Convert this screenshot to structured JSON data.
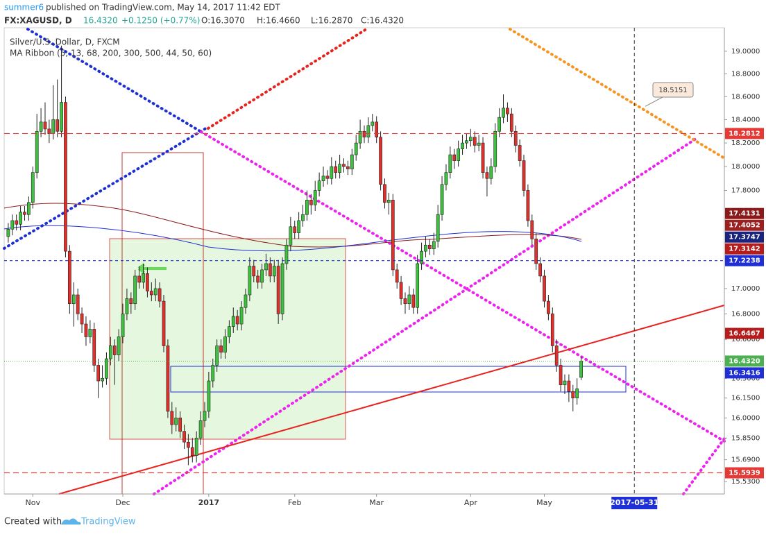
{
  "header": {
    "author": "summer6",
    "published": "published on TradingView.com, May 14, 2017 11:42 EDT",
    "symbol": "FX:XAGUSD, D",
    "last": "16.4320",
    "change": "+0.1250 (+0.77%)",
    "open": "O:16.3070",
    "high": "H:16.4660",
    "low": "L:16.2870",
    "close": "C:16.4320"
  },
  "footer": {
    "created": "Created with",
    "brand": "TradingView"
  },
  "chart_data": {
    "type": "candlestick",
    "title": "Silver/U.S. Dollar, D, FXCM",
    "subtitle": "MA Ribbon (5, 13, 68, 200, 300, 500, 44, 50, 60)",
    "log_scale": true,
    "up_color": "#3cc23c",
    "down_color": "#e0302b",
    "xlim": [
      -1,
      175
    ],
    "xticks": [
      {
        "value": 6,
        "label": "Nov"
      },
      {
        "value": 28,
        "label": "Dec"
      },
      {
        "value": 49,
        "label": "2017"
      },
      {
        "value": 70,
        "label": "Feb"
      },
      {
        "value": 90,
        "label": "Mar"
      },
      {
        "value": 113,
        "label": "Apr"
      },
      {
        "value": 131,
        "label": "May"
      }
    ],
    "x_marker": {
      "value": 153,
      "label": "2017-05-31"
    },
    "ylim": [
      15.44,
      19.21
    ],
    "yticks": [
      {
        "value": 19,
        "label": "19.0000"
      },
      {
        "value": 18.8,
        "label": "18.8000"
      },
      {
        "value": 18.6,
        "label": "18.6000"
      },
      {
        "value": 18.4,
        "label": "18.4000"
      },
      {
        "value": 18.2,
        "label": "18.2000"
      },
      {
        "value": 18,
        "label": "18.0000"
      },
      {
        "value": 17.8,
        "label": "17.8000"
      },
      {
        "value": 17,
        "label": "17.0000"
      },
      {
        "value": 16.8,
        "label": "16.8000"
      },
      {
        "value": 16.6,
        "label": "16.6000"
      },
      {
        "value": 16.3,
        "label": "16.3000"
      },
      {
        "value": 16.15,
        "label": "16.1500"
      },
      {
        "value": 16,
        "label": "16.0000"
      },
      {
        "value": 15.85,
        "label": "15.8500"
      },
      {
        "value": 15.69,
        "label": "15.6900"
      },
      {
        "value": 15.53,
        "label": "15.5300"
      }
    ],
    "price_labels": [
      {
        "value": 18.2812,
        "color": "#e53935",
        "line": "dashed"
      },
      {
        "value": 17.4131,
        "color": "#8b1a1a"
      },
      {
        "value": 17.4052,
        "color": "#9c2020"
      },
      {
        "value": 17.3747,
        "color": "#1a237e"
      },
      {
        "value": 17.3142,
        "color": "#b71c1c"
      },
      {
        "value": 17.2238,
        "color": "#1e2fd6",
        "line": "dashed"
      },
      {
        "value": 16.6467,
        "color": "#b71c1c"
      },
      {
        "value": 16.432,
        "label": "16.4320",
        "color": "#4caf50",
        "line": "dotted"
      },
      {
        "value": 16.3416,
        "color": "#1e2fd6"
      },
      {
        "value": 15.5939,
        "color": "#e53935",
        "line": "dashed"
      }
    ],
    "annotation": {
      "value": 18.5151,
      "label": "18.5151"
    },
    "candles": [
      [
        17.42,
        17.53,
        17.37,
        17.48
      ],
      [
        17.48,
        17.6,
        17.43,
        17.55
      ],
      [
        17.55,
        17.6,
        17.47,
        17.52
      ],
      [
        17.52,
        17.67,
        17.47,
        17.62
      ],
      [
        17.62,
        17.67,
        17.55,
        17.6
      ],
      [
        17.6,
        17.75,
        17.55,
        17.7
      ],
      [
        17.7,
        18.0,
        17.65,
        17.95
      ],
      [
        17.95,
        18.45,
        17.9,
        18.3
      ],
      [
        18.3,
        18.5,
        18.25,
        18.38
      ],
      [
        18.38,
        18.55,
        18.27,
        18.32
      ],
      [
        18.32,
        18.4,
        18.2,
        18.28
      ],
      [
        18.28,
        18.7,
        18.23,
        18.4
      ],
      [
        18.4,
        18.75,
        18.25,
        18.3
      ],
      [
        18.3,
        19.05,
        18.25,
        18.55
      ],
      [
        18.55,
        18.6,
        17.25,
        17.3
      ],
      [
        17.3,
        17.35,
        16.8,
        16.88
      ],
      [
        16.88,
        17.05,
        16.7,
        16.95
      ],
      [
        16.95,
        17.0,
        16.75,
        16.8
      ],
      [
        16.8,
        16.85,
        16.65,
        16.72
      ],
      [
        16.72,
        16.78,
        16.55,
        16.62
      ],
      [
        16.62,
        16.75,
        16.57,
        16.68
      ],
      [
        16.68,
        16.73,
        16.35,
        16.4
      ],
      [
        16.4,
        16.45,
        16.15,
        16.28
      ],
      [
        16.28,
        16.4,
        16.23,
        16.3
      ],
      [
        16.3,
        16.5,
        16.25,
        16.45
      ],
      [
        16.45,
        16.62,
        16.4,
        16.55
      ],
      [
        16.55,
        16.6,
        16.25,
        16.48
      ],
      [
        16.48,
        16.68,
        16.43,
        16.62
      ],
      [
        16.62,
        16.88,
        16.57,
        16.8
      ],
      [
        16.8,
        17.0,
        16.75,
        16.92
      ],
      [
        16.92,
        16.97,
        16.8,
        16.88
      ],
      [
        16.88,
        17.15,
        16.83,
        17.1
      ],
      [
        17.1,
        17.18,
        17.0,
        17.05
      ],
      [
        17.05,
        17.2,
        17.0,
        17.12
      ],
      [
        17.12,
        17.17,
        16.93,
        16.98
      ],
      [
        16.98,
        17.05,
        16.9,
        16.95
      ],
      [
        16.95,
        17.08,
        16.9,
        17.0
      ],
      [
        17.0,
        17.05,
        16.85,
        16.9
      ],
      [
        16.9,
        16.95,
        16.5,
        16.55
      ],
      [
        16.55,
        16.6,
        16.0,
        16.05
      ],
      [
        16.05,
        16.12,
        15.88,
        15.95
      ],
      [
        15.95,
        16.08,
        15.9,
        16.0
      ],
      [
        16.0,
        16.05,
        15.85,
        15.9
      ],
      [
        15.9,
        15.95,
        15.77,
        15.82
      ],
      [
        15.82,
        15.88,
        15.65,
        15.78
      ],
      [
        15.78,
        15.85,
        15.67,
        15.72
      ],
      [
        15.72,
        15.9,
        15.67,
        15.85
      ],
      [
        15.85,
        16.05,
        15.8,
        15.98
      ],
      [
        15.98,
        16.12,
        15.93,
        16.05
      ],
      [
        16.05,
        16.35,
        16.0,
        16.28
      ],
      [
        16.28,
        16.45,
        16.23,
        16.4
      ],
      [
        16.4,
        16.6,
        16.35,
        16.55
      ],
      [
        16.55,
        16.6,
        16.45,
        16.5
      ],
      [
        16.5,
        16.68,
        16.45,
        16.62
      ],
      [
        16.62,
        16.75,
        16.57,
        16.7
      ],
      [
        16.7,
        16.85,
        16.65,
        16.78
      ],
      [
        16.78,
        16.83,
        16.67,
        16.72
      ],
      [
        16.72,
        16.9,
        16.67,
        16.85
      ],
      [
        16.85,
        17.0,
        16.8,
        16.95
      ],
      [
        16.95,
        17.25,
        16.9,
        17.18
      ],
      [
        17.18,
        17.23,
        17.05,
        17.1
      ],
      [
        17.1,
        17.15,
        17.0,
        17.05
      ],
      [
        17.05,
        17.2,
        17.0,
        17.15
      ],
      [
        17.15,
        17.28,
        17.1,
        17.2
      ],
      [
        17.2,
        17.25,
        17.05,
        17.1
      ],
      [
        17.1,
        17.23,
        17.05,
        17.18
      ],
      [
        17.18,
        17.23,
        16.72,
        16.8
      ],
      [
        16.8,
        17.25,
        16.75,
        17.2
      ],
      [
        17.2,
        17.4,
        17.15,
        17.35
      ],
      [
        17.35,
        17.58,
        17.3,
        17.5
      ],
      [
        17.5,
        17.55,
        17.4,
        17.45
      ],
      [
        17.45,
        17.62,
        17.4,
        17.55
      ],
      [
        17.55,
        17.68,
        17.5,
        17.6
      ],
      [
        17.6,
        17.8,
        17.55,
        17.72
      ],
      [
        17.72,
        17.77,
        17.6,
        17.68
      ],
      [
        17.68,
        17.88,
        17.63,
        17.8
      ],
      [
        17.8,
        17.95,
        17.75,
        17.88
      ],
      [
        17.88,
        18.0,
        17.83,
        17.92
      ],
      [
        17.92,
        17.97,
        17.85,
        17.9
      ],
      [
        17.9,
        18.08,
        17.85,
        18.0
      ],
      [
        18.0,
        18.05,
        17.9,
        17.95
      ],
      [
        17.95,
        18.1,
        17.9,
        18.02
      ],
      [
        18.02,
        18.07,
        17.95,
        18.0
      ],
      [
        18.0,
        18.05,
        17.93,
        17.98
      ],
      [
        17.98,
        18.15,
        17.93,
        18.1
      ],
      [
        18.1,
        18.27,
        18.05,
        18.2
      ],
      [
        18.2,
        18.4,
        18.15,
        18.3
      ],
      [
        18.3,
        18.35,
        18.2,
        18.25
      ],
      [
        18.25,
        18.42,
        18.2,
        18.35
      ],
      [
        18.35,
        18.45,
        18.3,
        18.38
      ],
      [
        18.38,
        18.43,
        18.2,
        18.25
      ],
      [
        18.25,
        18.3,
        17.8,
        17.85
      ],
      [
        17.85,
        17.9,
        17.65,
        17.7
      ],
      [
        17.7,
        17.78,
        17.6,
        17.72
      ],
      [
        17.72,
        17.77,
        17.1,
        17.15
      ],
      [
        17.15,
        17.2,
        17.0,
        17.05
      ],
      [
        17.05,
        17.1,
        16.87,
        16.92
      ],
      [
        16.92,
        16.97,
        16.8,
        16.88
      ],
      [
        16.88,
        17.02,
        16.83,
        16.95
      ],
      [
        16.95,
        17.0,
        16.8,
        16.85
      ],
      [
        16.85,
        17.27,
        16.8,
        17.2
      ],
      [
        17.2,
        17.37,
        17.15,
        17.3
      ],
      [
        17.3,
        17.42,
        17.25,
        17.35
      ],
      [
        17.35,
        17.4,
        17.27,
        17.32
      ],
      [
        17.32,
        17.45,
        17.27,
        17.38
      ],
      [
        17.38,
        17.68,
        17.33,
        17.6
      ],
      [
        17.6,
        17.92,
        17.55,
        17.85
      ],
      [
        17.85,
        18.02,
        17.8,
        17.95
      ],
      [
        17.95,
        18.17,
        17.9,
        18.1
      ],
      [
        18.1,
        18.15,
        17.98,
        18.05
      ],
      [
        18.05,
        18.22,
        18.0,
        18.15
      ],
      [
        18.15,
        18.27,
        18.1,
        18.2
      ],
      [
        18.2,
        18.28,
        18.15,
        18.22
      ],
      [
        18.22,
        18.32,
        18.17,
        18.25
      ],
      [
        18.25,
        18.3,
        18.12,
        18.18
      ],
      [
        18.18,
        18.27,
        18.13,
        18.2
      ],
      [
        18.2,
        18.25,
        17.9,
        17.95
      ],
      [
        17.95,
        18.0,
        17.75,
        17.9
      ],
      [
        17.9,
        18.07,
        17.85,
        18.0
      ],
      [
        18.0,
        18.37,
        17.95,
        18.3
      ],
      [
        18.3,
        18.5,
        18.25,
        18.42
      ],
      [
        18.42,
        18.62,
        18.37,
        18.5
      ],
      [
        18.5,
        18.55,
        18.38,
        18.45
      ],
      [
        18.45,
        18.5,
        18.25,
        18.3
      ],
      [
        18.3,
        18.35,
        18.12,
        18.18
      ],
      [
        18.18,
        18.23,
        18.0,
        18.05
      ],
      [
        18.05,
        18.1,
        17.75,
        17.8
      ],
      [
        17.8,
        17.85,
        17.5,
        17.55
      ],
      [
        17.55,
        17.6,
        17.35,
        17.4
      ],
      [
        17.4,
        17.45,
        17.15,
        17.2
      ],
      [
        17.2,
        17.25,
        17.05,
        17.1
      ],
      [
        17.1,
        17.15,
        16.85,
        16.9
      ],
      [
        16.9,
        16.95,
        16.75,
        16.8
      ],
      [
        16.8,
        16.85,
        16.5,
        16.55
      ],
      [
        16.55,
        16.6,
        16.35,
        16.4
      ],
      [
        16.4,
        16.45,
        16.2,
        16.25
      ],
      [
        16.25,
        16.33,
        16.18,
        16.28
      ],
      [
        16.28,
        16.33,
        16.12,
        16.2
      ],
      [
        16.2,
        16.25,
        16.05,
        16.15
      ],
      [
        16.15,
        16.3,
        16.1,
        16.22
      ],
      [
        16.307,
        16.466,
        16.287,
        16.432
      ]
    ]
  }
}
